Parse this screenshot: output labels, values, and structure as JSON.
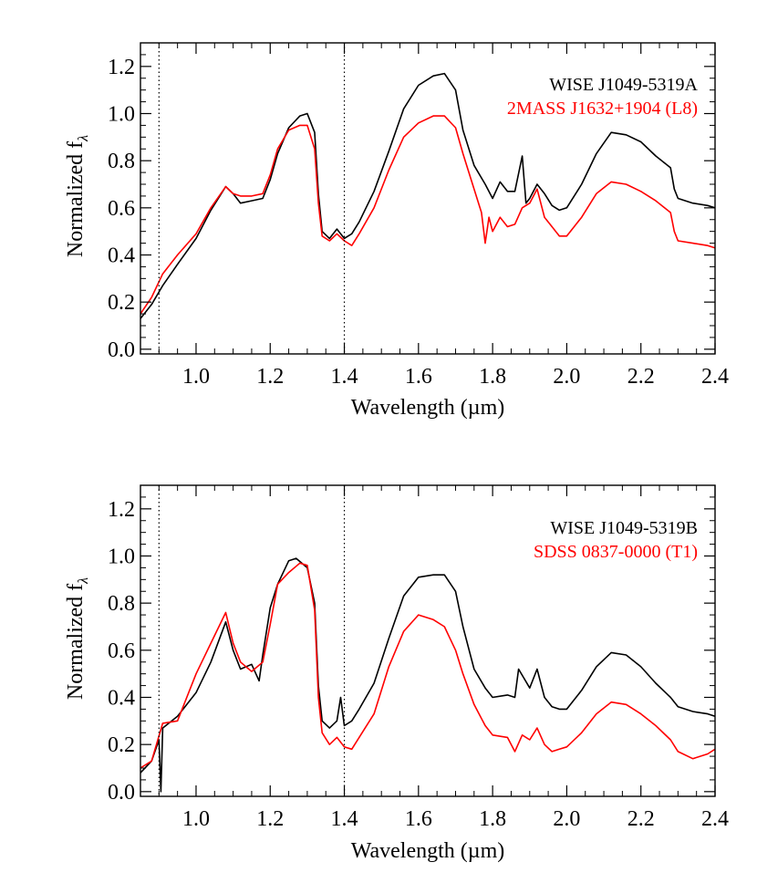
{
  "chart_data": [
    {
      "type": "line",
      "xlabel": "Wavelength (µm)",
      "ylabel": "Normalized f",
      "ylabel_subscript": "λ",
      "xlim": [
        0.85,
        2.4
      ],
      "ylim": [
        -0.02,
        1.3
      ],
      "xticks": [
        "1.0",
        "1.2",
        "1.4",
        "1.6",
        "1.8",
        "2.0",
        "2.2",
        "2.4"
      ],
      "xtick_values": [
        1.0,
        1.2,
        1.4,
        1.6,
        1.8,
        2.0,
        2.2,
        2.4
      ],
      "yticks": [
        "0.0",
        "0.2",
        "0.4",
        "0.6",
        "0.8",
        "1.0",
        "1.2"
      ],
      "ytick_values": [
        0.0,
        0.2,
        0.4,
        0.6,
        0.8,
        1.0,
        1.2
      ],
      "vlines": [
        0.9,
        1.4
      ],
      "legend_position": "top-right",
      "series": [
        {
          "name": "WISE J1049-5319A",
          "color": "#000000",
          "x": [
            0.85,
            0.88,
            0.91,
            0.95,
            1.0,
            1.04,
            1.08,
            1.1,
            1.12,
            1.15,
            1.18,
            1.2,
            1.22,
            1.25,
            1.28,
            1.3,
            1.32,
            1.33,
            1.34,
            1.36,
            1.38,
            1.4,
            1.42,
            1.44,
            1.48,
            1.52,
            1.56,
            1.6,
            1.64,
            1.67,
            1.7,
            1.72,
            1.75,
            1.78,
            1.8,
            1.82,
            1.84,
            1.86,
            1.88,
            1.89,
            1.9,
            1.92,
            1.94,
            1.96,
            1.98,
            2.0,
            2.04,
            2.08,
            2.12,
            2.16,
            2.2,
            2.24,
            2.28,
            2.29,
            2.3,
            2.34,
            2.38,
            2.4
          ],
          "y": [
            0.13,
            0.19,
            0.27,
            0.36,
            0.47,
            0.59,
            0.69,
            0.66,
            0.62,
            0.63,
            0.64,
            0.72,
            0.83,
            0.94,
            0.99,
            1.0,
            0.92,
            0.66,
            0.5,
            0.47,
            0.51,
            0.47,
            0.49,
            0.54,
            0.67,
            0.84,
            1.02,
            1.12,
            1.16,
            1.17,
            1.1,
            0.93,
            0.78,
            0.7,
            0.64,
            0.71,
            0.67,
            0.67,
            0.82,
            0.62,
            0.64,
            0.7,
            0.66,
            0.61,
            0.59,
            0.6,
            0.7,
            0.83,
            0.92,
            0.91,
            0.88,
            0.82,
            0.77,
            0.68,
            0.64,
            0.62,
            0.61,
            0.6
          ]
        },
        {
          "name": "2MASS J1632+1904 (L8)",
          "color": "#ff0000",
          "x": [
            0.85,
            0.88,
            0.91,
            0.95,
            1.0,
            1.04,
            1.08,
            1.1,
            1.12,
            1.15,
            1.18,
            1.2,
            1.22,
            1.25,
            1.28,
            1.3,
            1.32,
            1.33,
            1.34,
            1.36,
            1.38,
            1.4,
            1.42,
            1.44,
            1.48,
            1.52,
            1.56,
            1.6,
            1.64,
            1.67,
            1.7,
            1.72,
            1.75,
            1.77,
            1.78,
            1.79,
            1.8,
            1.82,
            1.84,
            1.86,
            1.88,
            1.9,
            1.92,
            1.94,
            1.96,
            1.98,
            2.0,
            2.04,
            2.08,
            2.12,
            2.16,
            2.2,
            2.24,
            2.28,
            2.29,
            2.3,
            2.34,
            2.38,
            2.4
          ],
          "y": [
            0.15,
            0.22,
            0.32,
            0.4,
            0.49,
            0.6,
            0.69,
            0.66,
            0.65,
            0.65,
            0.66,
            0.74,
            0.85,
            0.93,
            0.95,
            0.95,
            0.85,
            0.62,
            0.48,
            0.46,
            0.49,
            0.46,
            0.44,
            0.49,
            0.6,
            0.76,
            0.9,
            0.96,
            0.99,
            0.99,
            0.94,
            0.83,
            0.68,
            0.58,
            0.45,
            0.56,
            0.5,
            0.56,
            0.52,
            0.53,
            0.6,
            0.62,
            0.68,
            0.56,
            0.52,
            0.48,
            0.48,
            0.56,
            0.66,
            0.71,
            0.7,
            0.67,
            0.63,
            0.58,
            0.5,
            0.46,
            0.45,
            0.44,
            0.43
          ]
        }
      ]
    },
    {
      "type": "line",
      "xlabel": "Wavelength (µm)",
      "ylabel": "Normalized f",
      "ylabel_subscript": "λ",
      "xlim": [
        0.85,
        2.4
      ],
      "ylim": [
        -0.02,
        1.3
      ],
      "xticks": [
        "1.0",
        "1.2",
        "1.4",
        "1.6",
        "1.8",
        "2.0",
        "2.2",
        "2.4"
      ],
      "xtick_values": [
        1.0,
        1.2,
        1.4,
        1.6,
        1.8,
        2.0,
        2.2,
        2.4
      ],
      "yticks": [
        "0.0",
        "0.2",
        "0.4",
        "0.6",
        "0.8",
        "1.0",
        "1.2"
      ],
      "ytick_values": [
        0.0,
        0.2,
        0.4,
        0.6,
        0.8,
        1.0,
        1.2
      ],
      "vlines": [
        0.9,
        1.4
      ],
      "legend_position": "top-right",
      "series": [
        {
          "name": "WISE J1049-5319B",
          "color": "#000000",
          "x": [
            0.85,
            0.88,
            0.9,
            0.905,
            0.91,
            0.95,
            1.0,
            1.04,
            1.08,
            1.1,
            1.12,
            1.15,
            1.17,
            1.18,
            1.2,
            1.22,
            1.25,
            1.27,
            1.3,
            1.32,
            1.33,
            1.34,
            1.36,
            1.38,
            1.39,
            1.4,
            1.42,
            1.44,
            1.48,
            1.52,
            1.56,
            1.6,
            1.64,
            1.67,
            1.7,
            1.72,
            1.75,
            1.78,
            1.8,
            1.84,
            1.86,
            1.87,
            1.9,
            1.92,
            1.94,
            1.96,
            1.98,
            2.0,
            2.04,
            2.08,
            2.12,
            2.16,
            2.2,
            2.24,
            2.28,
            2.3,
            2.34,
            2.38,
            2.4
          ],
          "y": [
            0.08,
            0.13,
            0.22,
            0.0,
            0.27,
            0.32,
            0.42,
            0.55,
            0.72,
            0.6,
            0.52,
            0.54,
            0.47,
            0.58,
            0.78,
            0.88,
            0.98,
            0.99,
            0.95,
            0.8,
            0.45,
            0.3,
            0.27,
            0.3,
            0.4,
            0.28,
            0.3,
            0.35,
            0.46,
            0.65,
            0.83,
            0.91,
            0.92,
            0.92,
            0.85,
            0.7,
            0.52,
            0.44,
            0.4,
            0.41,
            0.4,
            0.52,
            0.44,
            0.52,
            0.4,
            0.36,
            0.35,
            0.35,
            0.43,
            0.53,
            0.59,
            0.58,
            0.53,
            0.46,
            0.4,
            0.36,
            0.34,
            0.33,
            0.32
          ]
        },
        {
          "name": "SDSS 0837-0000 (T1)",
          "color": "#ff0000",
          "x": [
            0.85,
            0.88,
            0.91,
            0.95,
            1.0,
            1.04,
            1.08,
            1.1,
            1.12,
            1.15,
            1.18,
            1.2,
            1.22,
            1.25,
            1.28,
            1.3,
            1.32,
            1.33,
            1.34,
            1.36,
            1.38,
            1.4,
            1.42,
            1.44,
            1.48,
            1.52,
            1.56,
            1.6,
            1.64,
            1.67,
            1.7,
            1.72,
            1.75,
            1.78,
            1.8,
            1.84,
            1.86,
            1.88,
            1.9,
            1.92,
            1.94,
            1.96,
            1.98,
            2.0,
            2.04,
            2.08,
            2.12,
            2.16,
            2.2,
            2.24,
            2.28,
            2.3,
            2.34,
            2.38,
            2.4
          ],
          "y": [
            0.1,
            0.13,
            0.29,
            0.3,
            0.5,
            0.63,
            0.76,
            0.63,
            0.55,
            0.51,
            0.55,
            0.71,
            0.88,
            0.93,
            0.97,
            0.96,
            0.77,
            0.4,
            0.25,
            0.2,
            0.23,
            0.19,
            0.18,
            0.23,
            0.33,
            0.53,
            0.68,
            0.75,
            0.73,
            0.7,
            0.6,
            0.5,
            0.37,
            0.28,
            0.24,
            0.23,
            0.17,
            0.24,
            0.22,
            0.27,
            0.2,
            0.17,
            0.18,
            0.19,
            0.25,
            0.33,
            0.38,
            0.37,
            0.33,
            0.28,
            0.22,
            0.17,
            0.14,
            0.16,
            0.18
          ]
        }
      ]
    }
  ]
}
